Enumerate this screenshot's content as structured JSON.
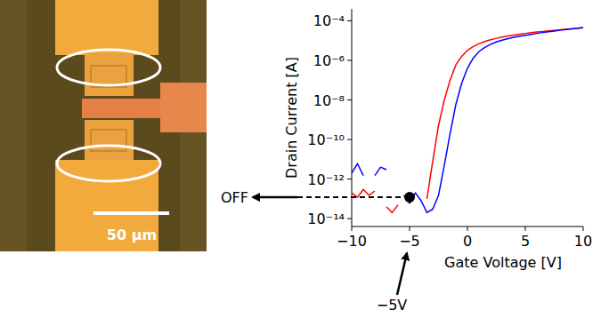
{
  "micrograph": {
    "scale_bar_label": "50 μm"
  },
  "chart_data": {
    "type": "line",
    "xlabel": "Gate Voltage [V]",
    "ylabel": "Drain Current [A]",
    "log": "y",
    "grid": false,
    "xlim": [
      -10,
      10
    ],
    "ylim": [
      4e-15,
      0.0004
    ],
    "xticks": [
      {
        "value": -10,
        "label": "−10"
      },
      {
        "value": -5,
        "label": "−5"
      },
      0,
      5,
      10
    ],
    "yticks": [
      {
        "value": 1e-14,
        "label": "10⁻¹⁴"
      },
      {
        "value": 1e-12,
        "label": "10⁻¹²"
      },
      {
        "value": 1e-10,
        "label": "10⁻¹⁰"
      },
      {
        "value": 1e-08,
        "label": "10⁻⁸"
      },
      {
        "value": 1e-06,
        "label": "10⁻⁶"
      },
      {
        "value": 0.0001,
        "label": "10⁻⁴"
      }
    ],
    "x": [
      -10,
      -9.5,
      -9,
      -8.5,
      -8,
      -7.5,
      -7,
      -6.5,
      -6,
      -5.5,
      -5,
      -4.5,
      -4,
      -3.5,
      -3,
      -2.5,
      -2,
      -1.5,
      -1,
      -0.5,
      0,
      0.5,
      1,
      1.5,
      2,
      2.5,
      3,
      3.5,
      4,
      4.5,
      5,
      5.5,
      6,
      6.5,
      7,
      7.5,
      8,
      8.5,
      9,
      9.5,
      10
    ],
    "series": [
      {
        "color": "#ff0000",
        "values": [
          2e-13,
          1.2e-13,
          3e-13,
          1.5e-13,
          2.5e-13,
          null,
          4e-14,
          2e-14,
          5e-14,
          null,
          null,
          null,
          null,
          1e-13,
          8e-12,
          5e-10,
          1e-08,
          1e-07,
          6e-07,
          1.6e-06,
          3.2e-06,
          5e-06,
          7e-06,
          9e-06,
          1.1e-05,
          1.3e-05,
          1.5e-05,
          1.7e-05,
          1.9e-05,
          2.1e-05,
          2.3e-05,
          2.5e-05,
          2.7e-05,
          2.9e-05,
          3.1e-05,
          3.3e-05,
          3.5e-05,
          3.7e-05,
          3.9e-05,
          4.1e-05,
          4.4e-05
        ]
      },
      {
        "color": "#0000ff",
        "values": [
          2e-12,
          6e-12,
          1.5e-12,
          null,
          1.5e-12,
          4e-12,
          3e-12,
          null,
          null,
          1.5e-13,
          6e-14,
          2e-13,
          8e-14,
          2e-14,
          3e-14,
          1.5e-13,
          5e-12,
          2e-10,
          6e-09,
          7e-08,
          4e-07,
          1.3e-06,
          2.8e-06,
          4.5e-06,
          6.5e-06,
          8.5e-06,
          1.05e-05,
          1.25e-05,
          1.45e-05,
          1.65e-05,
          1.85e-05,
          2.05e-05,
          2.3e-05,
          2.55e-05,
          2.8e-05,
          3.05e-05,
          3.3e-05,
          3.6e-05,
          3.9e-05,
          4.2e-05,
          4.6e-05
        ]
      }
    ],
    "annotations": {
      "off_label": "OFF",
      "voltage_label": "−5V",
      "off_point": {
        "x": -5,
        "y": 1.2e-13
      }
    }
  }
}
